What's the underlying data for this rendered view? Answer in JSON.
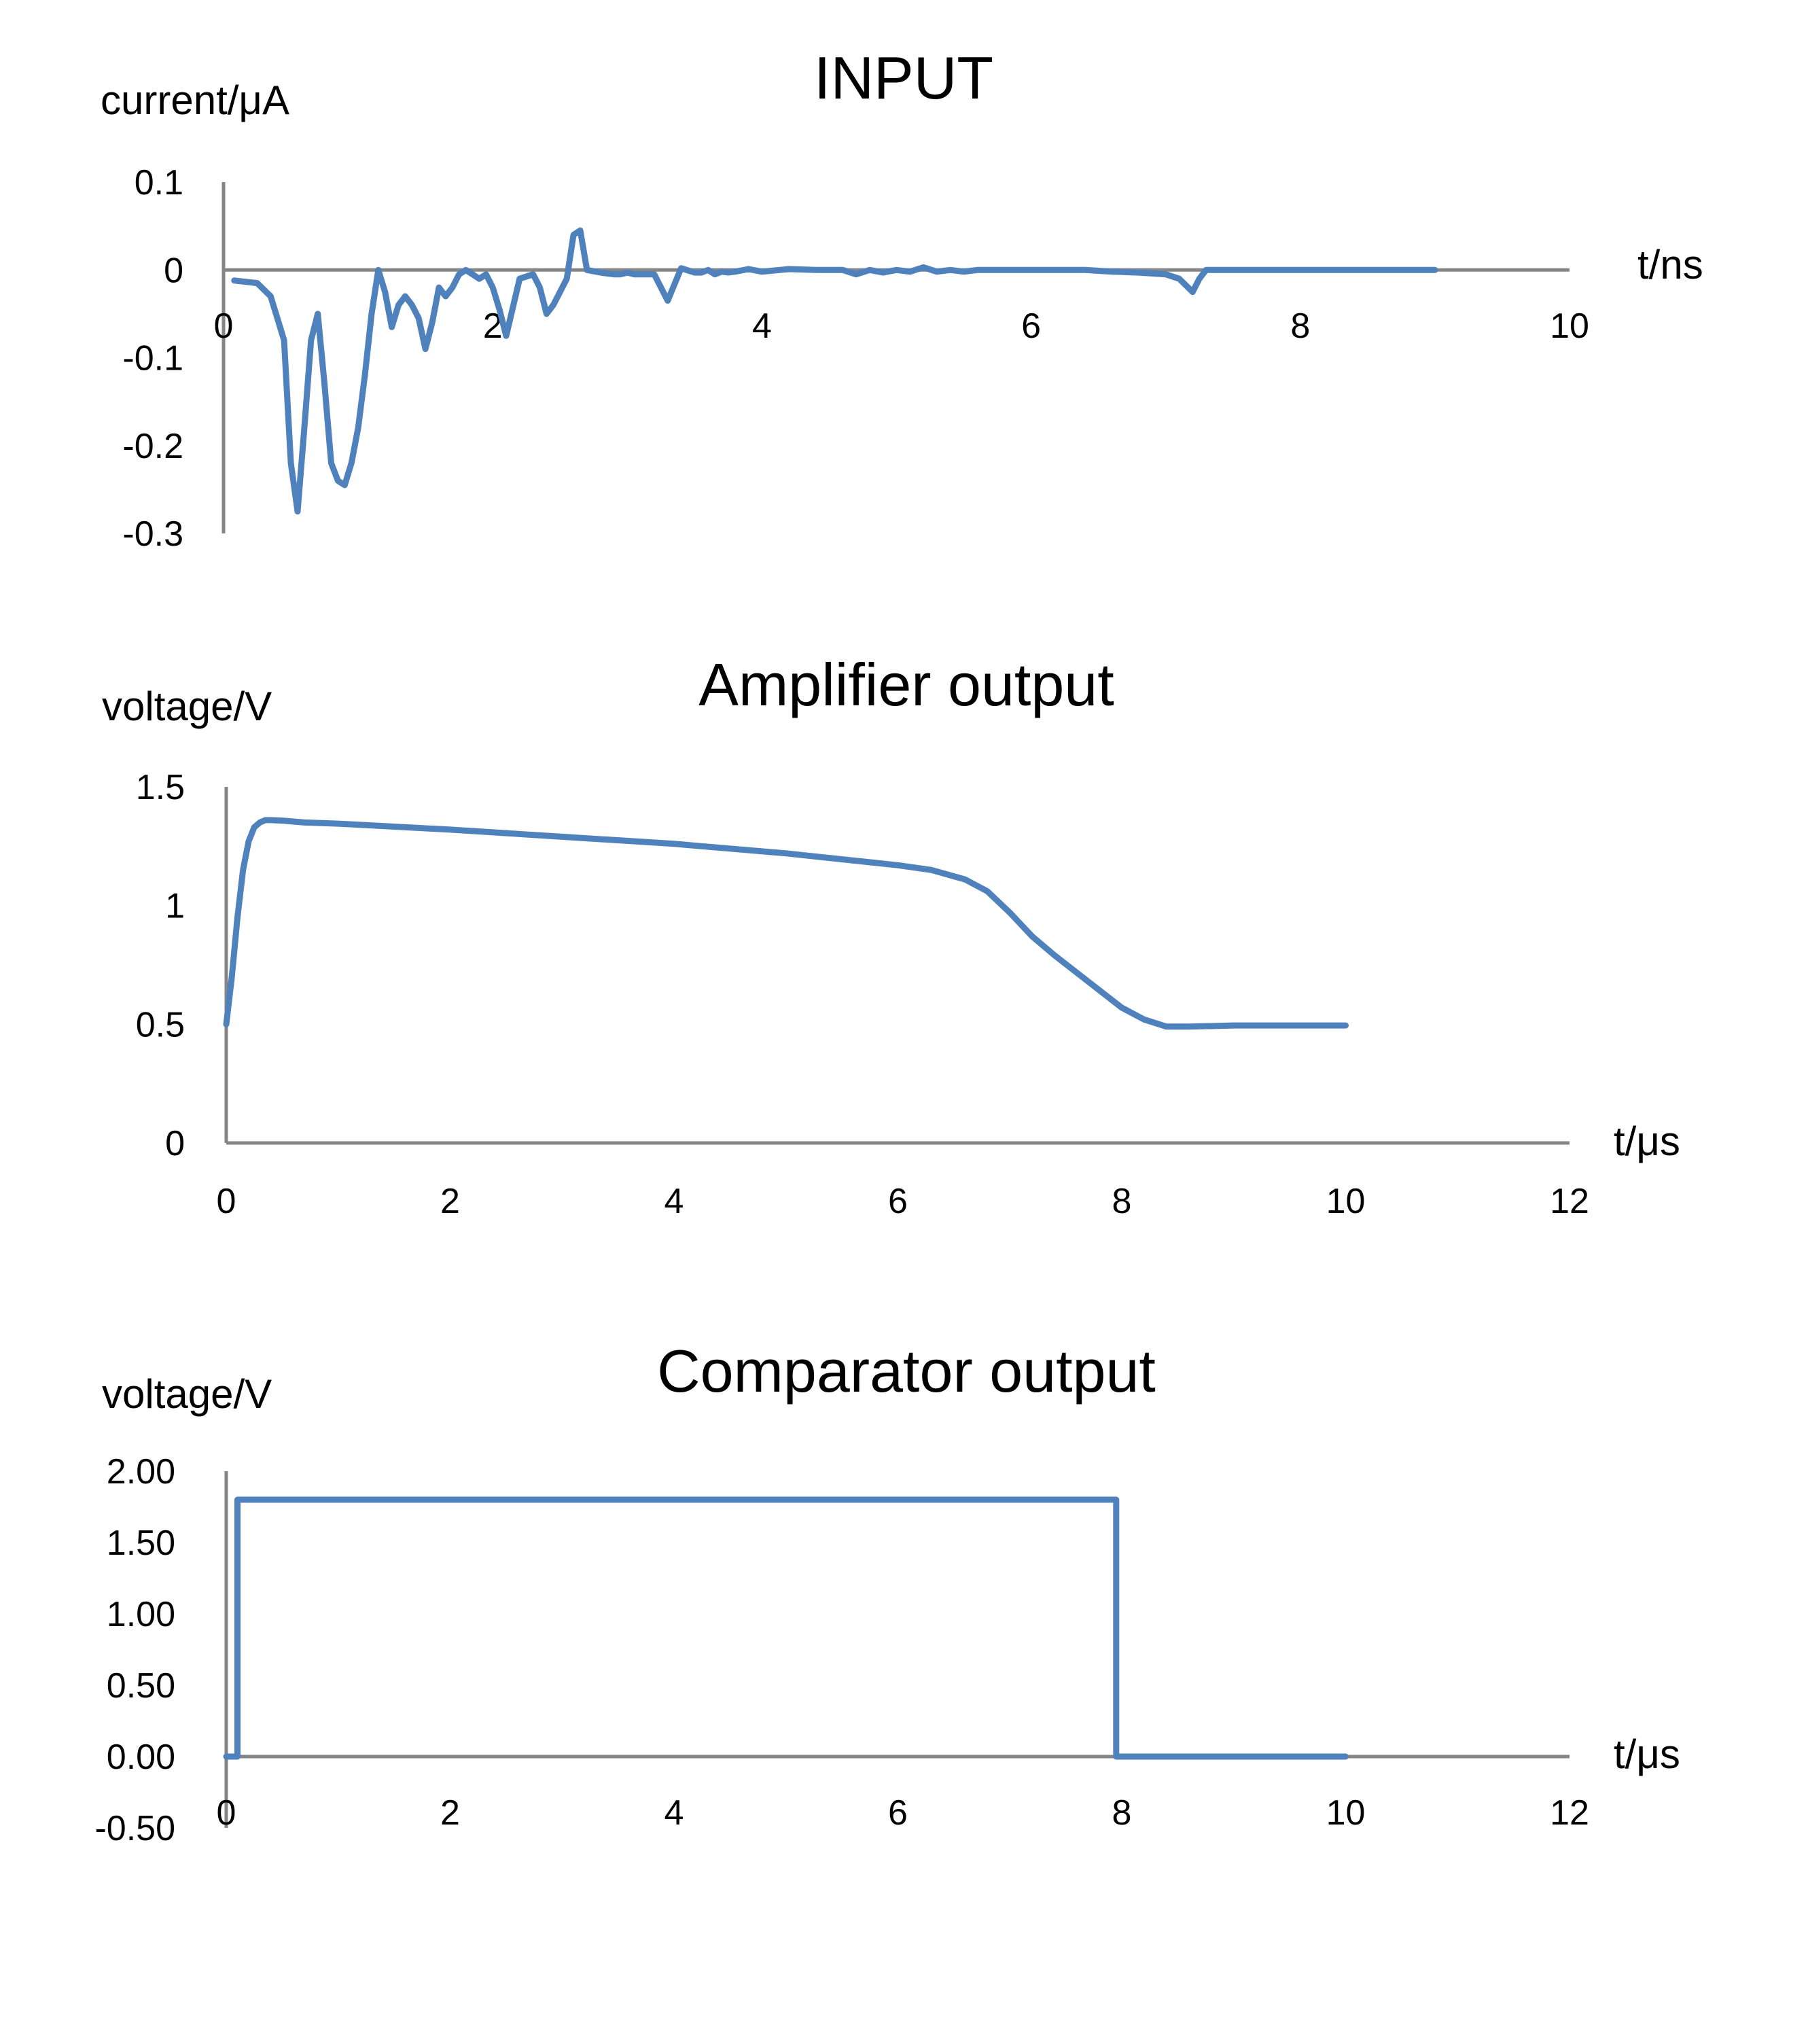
{
  "chart_data": [
    {
      "type": "line",
      "title": "INPUT",
      "ylabel": "current/μA",
      "xlabel": "t/ns",
      "xlim": [
        0,
        10
      ],
      "ylim": [
        -0.3,
        0.1
      ],
      "x_ticks": [
        "0",
        "2",
        "4",
        "6",
        "8",
        "10"
      ],
      "y_ticks": [
        "0.1",
        "0",
        "-0.1",
        "-0.2",
        "-0.3"
      ],
      "grid": false,
      "legend": "none",
      "colors": {
        "series": "#4f81bd",
        "axis": "#868686"
      },
      "series": [
        {
          "x": [
            0.08,
            0.25,
            0.35,
            0.45,
            0.5,
            0.55,
            0.6,
            0.65,
            0.7,
            0.75,
            0.8,
            0.85,
            0.9,
            0.95,
            1.0,
            1.05,
            1.1,
            1.15,
            1.2,
            1.25,
            1.3,
            1.35,
            1.4,
            1.45,
            1.5,
            1.55,
            1.6,
            1.65,
            1.7,
            1.75,
            1.8,
            1.85,
            1.9,
            1.95,
            2.0,
            2.05,
            2.1,
            2.2,
            2.3,
            2.35,
            2.4,
            2.45,
            2.5,
            2.55,
            2.6,
            2.65,
            2.7,
            2.8,
            2.9,
            2.95,
            3.0,
            3.05,
            3.1,
            3.2,
            3.3,
            3.4,
            3.5,
            3.55,
            3.6,
            3.65,
            3.7,
            3.75,
            3.8,
            3.9,
            4.0,
            4.2,
            4.4,
            4.6,
            4.7,
            4.8,
            4.9,
            5.0,
            5.1,
            5.2,
            5.3,
            5.4,
            5.5,
            5.6,
            5.8,
            6.0,
            6.2,
            6.4,
            6.6,
            6.8,
            7.0,
            7.1,
            7.2,
            7.25,
            7.3,
            7.35,
            7.4,
            7.45,
            7.5,
            7.6,
            7.8,
            8.0,
            8.5,
            9.0
          ],
          "y": [
            -0.012,
            -0.015,
            -0.03,
            -0.08,
            -0.22,
            -0.275,
            -0.18,
            -0.08,
            -0.05,
            -0.13,
            -0.22,
            -0.24,
            -0.245,
            -0.22,
            -0.18,
            -0.12,
            -0.05,
            0.0,
            -0.025,
            -0.065,
            -0.04,
            -0.03,
            -0.04,
            -0.055,
            -0.09,
            -0.06,
            -0.02,
            -0.03,
            -0.02,
            -0.005,
            0.0,
            -0.005,
            -0.01,
            -0.005,
            -0.02,
            -0.045,
            -0.075,
            -0.01,
            -0.005,
            -0.02,
            -0.05,
            -0.04,
            -0.025,
            -0.01,
            0.04,
            0.045,
            0.0,
            -0.003,
            -0.005,
            -0.005,
            -0.003,
            -0.005,
            -0.005,
            -0.005,
            -0.035,
            0.002,
            -0.003,
            -0.003,
            0.0,
            -0.005,
            -0.002,
            -0.003,
            -0.002,
            0.001,
            -0.002,
            0.001,
            0.0,
            0.0,
            -0.005,
            0.0,
            -0.003,
            0.0,
            -0.002,
            0.003,
            -0.002,
            0.0,
            -0.002,
            0.0,
            0.0,
            0.0,
            0.0,
            0.0,
            -0.002,
            -0.003,
            -0.005,
            -0.01,
            -0.025,
            -0.01,
            0.0,
            0.0,
            0.0,
            0.0,
            0.0,
            0.0,
            0.0,
            0.0,
            0.0,
            0.0
          ]
        }
      ]
    },
    {
      "type": "line",
      "title": "Amplifier output",
      "ylabel": "voltage/V",
      "xlabel": "t/μs",
      "xlim": [
        0,
        12
      ],
      "ylim": [
        0,
        1.5
      ],
      "x_ticks": [
        "0",
        "2",
        "4",
        "6",
        "8",
        "10",
        "12"
      ],
      "y_ticks": [
        "1.5",
        "1",
        "0.5",
        "0"
      ],
      "grid": false,
      "legend": "none",
      "colors": {
        "series": "#4f81bd",
        "axis": "#868686"
      },
      "series": [
        {
          "x": [
            0.0,
            0.05,
            0.1,
            0.15,
            0.2,
            0.25,
            0.3,
            0.35,
            0.4,
            0.5,
            0.7,
            1.0,
            2.0,
            3.0,
            4.0,
            5.0,
            6.0,
            6.3,
            6.6,
            6.8,
            7.0,
            7.2,
            7.4,
            7.7,
            8.0,
            8.2,
            8.4,
            8.6,
            9.0,
            9.5,
            10.0
          ],
          "y": [
            0.5,
            0.7,
            0.95,
            1.15,
            1.27,
            1.33,
            1.35,
            1.36,
            1.36,
            1.358,
            1.35,
            1.345,
            1.32,
            1.29,
            1.26,
            1.22,
            1.17,
            1.15,
            1.11,
            1.06,
            0.97,
            0.87,
            0.79,
            0.68,
            0.57,
            0.52,
            0.49,
            0.49,
            0.495,
            0.495,
            0.495
          ]
        }
      ]
    },
    {
      "type": "line",
      "title": "Comparator output",
      "ylabel": "voltage/V",
      "xlabel": "t/μs",
      "xlim": [
        0,
        12
      ],
      "ylim": [
        -0.5,
        2.0
      ],
      "x_ticks": [
        "0",
        "2",
        "4",
        "6",
        "8",
        "10",
        "12"
      ],
      "y_ticks": [
        "2.00",
        "1.50",
        "1.00",
        "0.50",
        "0.00",
        "-0.50"
      ],
      "grid": false,
      "legend": "none",
      "colors": {
        "series": "#4f81bd",
        "axis": "#868686"
      },
      "series": [
        {
          "x": [
            0.0,
            0.1,
            0.1,
            7.95,
            7.95,
            10.0
          ],
          "y": [
            0.0,
            0.0,
            1.8,
            1.8,
            0.0,
            0.0
          ]
        }
      ]
    }
  ]
}
